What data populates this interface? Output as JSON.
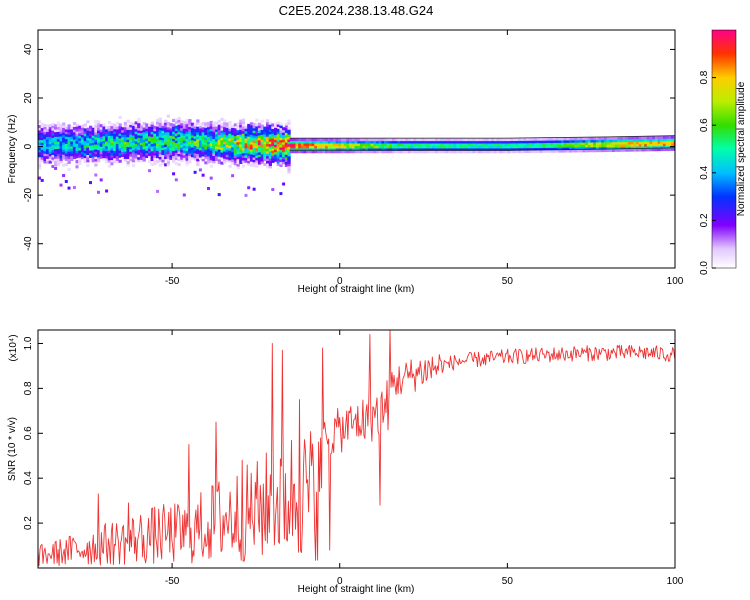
{
  "figure": {
    "title": "C2E5.2024.238.13.48.G24"
  },
  "chart_data": [
    {
      "type": "heatmap",
      "xlabel": "Height of straight line (km)",
      "ylabel": "Frequency (Hz)",
      "xlim": [
        -90,
        100
      ],
      "ylim": [
        -50,
        48
      ],
      "xticks": [
        -50,
        0,
        50,
        100
      ],
      "yticks": [
        -40,
        -20,
        0,
        20,
        40
      ],
      "colorbar": {
        "label": "Normalized spectral amplitude",
        "range": [
          0,
          1
        ],
        "ticks": [
          "0.0",
          "0.2",
          "0.4",
          "0.6",
          "0.8"
        ]
      },
      "ridge": [
        {
          "x": -90,
          "f": 1
        },
        {
          "x": -70,
          "f": 1.5
        },
        {
          "x": -50,
          "f": 2.5
        },
        {
          "x": -35,
          "f": 1.5
        },
        {
          "x": -15,
          "f": 0.5
        },
        {
          "x": 0,
          "f": 0.5
        },
        {
          "x": 20,
          "f": 0.5
        },
        {
          "x": 50,
          "f": 0.5
        },
        {
          "x": 80,
          "f": 1
        },
        {
          "x": 100,
          "f": 1.5
        }
      ],
      "amplitude_trend": [
        {
          "x": -90,
          "a": 0.45
        },
        {
          "x": -60,
          "a": 0.55
        },
        {
          "x": -40,
          "a": 0.6
        },
        {
          "x": -15,
          "a": 1.0
        },
        {
          "x": 20,
          "a": 0.55
        },
        {
          "x": 60,
          "a": 0.55
        },
        {
          "x": 80,
          "a": 0.8
        },
        {
          "x": 100,
          "a": 0.95
        }
      ]
    },
    {
      "type": "line",
      "xlabel": "Height of straight line (km)",
      "ylabel": "SNR (10 * v/v)",
      "yscale_note": "(x10⁴)",
      "xlim": [
        -90,
        100
      ],
      "ylim": [
        0,
        1.06
      ],
      "xticks": [
        -50,
        0,
        50,
        100
      ],
      "yticks": [
        "0.2",
        "0.4",
        "0.6",
        "0.8",
        "1.0"
      ],
      "color": "#ee3333",
      "envelope": [
        {
          "x": -90,
          "y": 0.1
        },
        {
          "x": -70,
          "y": 0.2
        },
        {
          "x": -55,
          "y": 0.28
        },
        {
          "x": -45,
          "y": 0.3
        },
        {
          "x": -35,
          "y": 0.42
        },
        {
          "x": -25,
          "y": 0.48
        },
        {
          "x": -15,
          "y": 0.62
        },
        {
          "x": -5,
          "y": 0.65
        },
        {
          "x": 0,
          "y": 0.68
        },
        {
          "x": 5,
          "y": 0.72
        },
        {
          "x": 10,
          "y": 0.75
        },
        {
          "x": 15,
          "y": 0.82
        },
        {
          "x": 25,
          "y": 0.88
        },
        {
          "x": 35,
          "y": 0.92
        },
        {
          "x": 50,
          "y": 0.94
        },
        {
          "x": 70,
          "y": 0.955
        },
        {
          "x": 90,
          "y": 0.96
        },
        {
          "x": 100,
          "y": 0.95
        }
      ],
      "spikes": [
        {
          "x": -72,
          "y": 0.33
        },
        {
          "x": -63,
          "y": 0.29
        },
        {
          "x": -45,
          "y": 0.55
        },
        {
          "x": -37,
          "y": 0.65
        },
        {
          "x": -29,
          "y": 0.48
        },
        {
          "x": -20,
          "y": 1.0
        },
        {
          "x": -17,
          "y": 0.97
        },
        {
          "x": -12,
          "y": 0.75
        },
        {
          "x": -5,
          "y": 0.98
        },
        {
          "x": 9,
          "y": 1.04
        },
        {
          "x": 15,
          "y": 1.06
        }
      ],
      "dips": [
        {
          "x": -3,
          "y": 0.08
        },
        {
          "x": 12,
          "y": 0.28
        }
      ]
    }
  ]
}
